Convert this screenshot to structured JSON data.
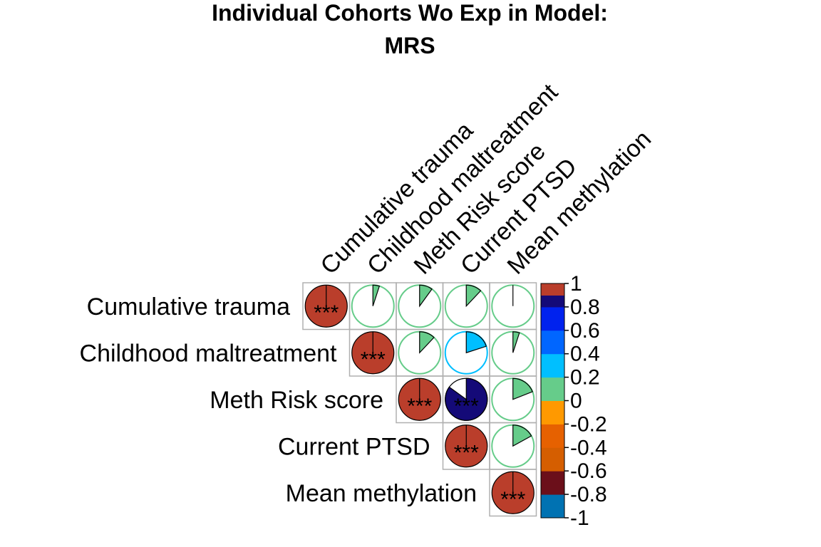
{
  "chart_data": {
    "type": "heatmap",
    "title": [
      "Individual Cohorts Wo Exp in Model:",
      "MRS"
    ],
    "method": "pie",
    "matrix_shape": "upper",
    "variables": [
      "Cumulative trauma",
      "Childhood maltreatment",
      "Meth Risk score",
      "Current PTSD",
      "Mean methylation"
    ],
    "cells": [
      {
        "row": "Cumulative trauma",
        "col": "Cumulative trauma",
        "r": 1.0,
        "sig": "***"
      },
      {
        "row": "Cumulative trauma",
        "col": "Childhood maltreatment",
        "r": 0.05,
        "sig": ""
      },
      {
        "row": "Cumulative trauma",
        "col": "Meth Risk score",
        "r": 0.1,
        "sig": ""
      },
      {
        "row": "Cumulative trauma",
        "col": "Current PTSD",
        "r": 0.12,
        "sig": ""
      },
      {
        "row": "Cumulative trauma",
        "col": "Mean methylation",
        "r": 0.0,
        "sig": ""
      },
      {
        "row": "Childhood maltreatment",
        "col": "Childhood maltreatment",
        "r": 1.0,
        "sig": "***"
      },
      {
        "row": "Childhood maltreatment",
        "col": "Meth Risk score",
        "r": 0.12,
        "sig": ""
      },
      {
        "row": "Childhood maltreatment",
        "col": "Current PTSD",
        "r": 0.2,
        "sig": ""
      },
      {
        "row": "Childhood maltreatment",
        "col": "Mean methylation",
        "r": 0.05,
        "sig": ""
      },
      {
        "row": "Meth Risk score",
        "col": "Meth Risk score",
        "r": 1.0,
        "sig": "***"
      },
      {
        "row": "Meth Risk score",
        "col": "Current PTSD",
        "r": 0.85,
        "sig": "***"
      },
      {
        "row": "Meth Risk score",
        "col": "Mean methylation",
        "r": 0.19,
        "sig": ""
      },
      {
        "row": "Current PTSD",
        "col": "Current PTSD",
        "r": 1.0,
        "sig": "***"
      },
      {
        "row": "Current PTSD",
        "col": "Mean methylation",
        "r": 0.17,
        "sig": ""
      },
      {
        "row": "Mean methylation",
        "col": "Mean methylation",
        "r": 1.0,
        "sig": "***"
      }
    ],
    "colorbar": {
      "range": [
        -1,
        1
      ],
      "colors": [
        "#0072B2",
        "#6B0F1A",
        "#D55E00",
        "#E66100",
        "#FF9900",
        "#66CC8A",
        "#00BFFF",
        "#0066FF",
        "#0022EE",
        "#140A78",
        "#BA3E2B"
      ],
      "bin_edges": [
        -1,
        -0.8,
        -0.6,
        -0.4,
        -0.2,
        0,
        0.2,
        0.4,
        0.6,
        0.8,
        0.9,
        1
      ],
      "tick_labels": [
        "1",
        "0.8",
        "0.6",
        "0.4",
        "0.2",
        "0",
        "-0.2",
        "-0.4",
        "-0.6",
        "-0.8",
        "-1"
      ],
      "tick_values": [
        1,
        0.8,
        0.6,
        0.4,
        0.2,
        0,
        -0.2,
        -0.4,
        -0.6,
        -0.8,
        -1
      ]
    },
    "grid": true,
    "legend": "right",
    "colors": {
      "positive_fill": "#00BFFF",
      "strong_fill": "#BA3E2B",
      "outline": "#00BFFF",
      "grid": "#B0B0B0"
    }
  }
}
